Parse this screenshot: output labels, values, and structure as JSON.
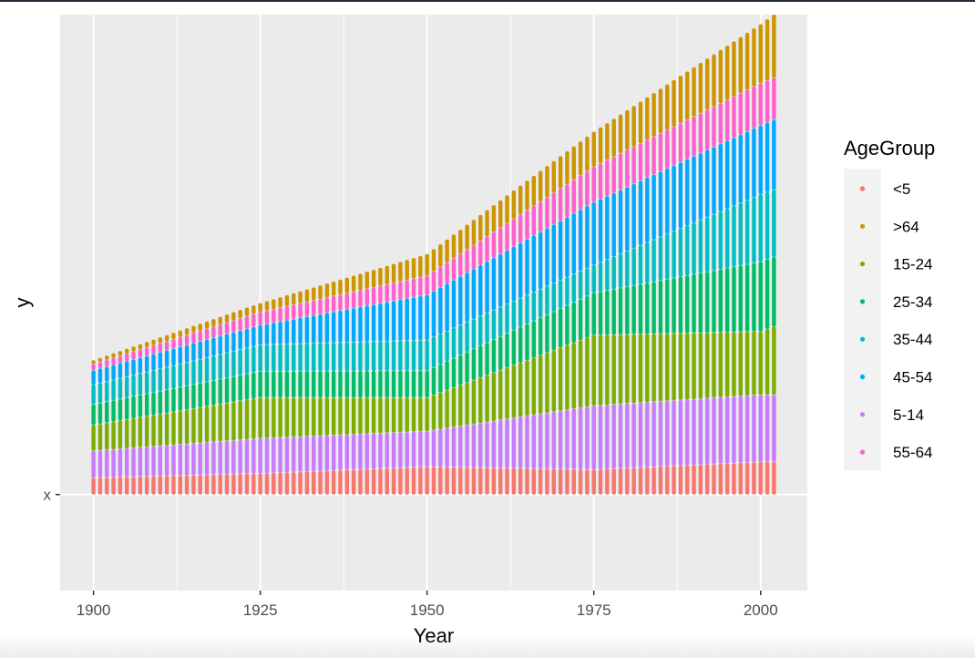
{
  "chart_data": {
    "type": "bar",
    "xlabel": "Year",
    "ylabel": "y",
    "x_ticks": [
      "1900",
      "1925",
      "1950",
      "1975",
      "2000"
    ],
    "y_ticks": [
      "x"
    ],
    "xlim": [
      1895,
      2007
    ],
    "ylim": [
      -0.2,
      1.0
    ],
    "legend": {
      "title": "AgeGroup",
      "position": "right",
      "entries": [
        "<5",
        ">64",
        "15-24",
        "25-34",
        "35-44",
        "45-54",
        "5-14",
        "55-64"
      ]
    },
    "stack_order_bottom_to_top": [
      "<5",
      "5-14",
      "15-24",
      "25-34",
      "35-44",
      "45-54",
      "55-64",
      ">64"
    ],
    "colors": {
      "<5": "#F8766D",
      ">64": "#CD9600",
      "15-24": "#7CAE00",
      "25-34": "#00BE67",
      "35-44": "#00BFC4",
      "45-54": "#00A9FF",
      "5-14": "#C77CFF",
      "55-64": "#FF61CC"
    },
    "years": [
      1900,
      1925,
      1950,
      1975,
      2000,
      2002
    ],
    "cumulative_tops": {
      "<5": [
        0.035,
        0.044,
        0.058,
        0.052,
        0.068,
        0.068
      ],
      "5-14": [
        0.091,
        0.117,
        0.132,
        0.185,
        0.208,
        0.208
      ],
      "15-24": [
        0.145,
        0.202,
        0.202,
        0.332,
        0.34,
        0.35
      ],
      "25-34": [
        0.188,
        0.257,
        0.258,
        0.42,
        0.485,
        0.495
      ],
      "35-44": [
        0.229,
        0.312,
        0.322,
        0.478,
        0.625,
        0.635
      ],
      "45-54": [
        0.259,
        0.353,
        0.416,
        0.609,
        0.769,
        0.781
      ],
      "55-64": [
        0.272,
        0.38,
        0.456,
        0.683,
        0.857,
        0.868
      ],
      ">64": [
        0.28,
        0.399,
        0.501,
        0.756,
        0.98,
        1.0
      ]
    }
  }
}
